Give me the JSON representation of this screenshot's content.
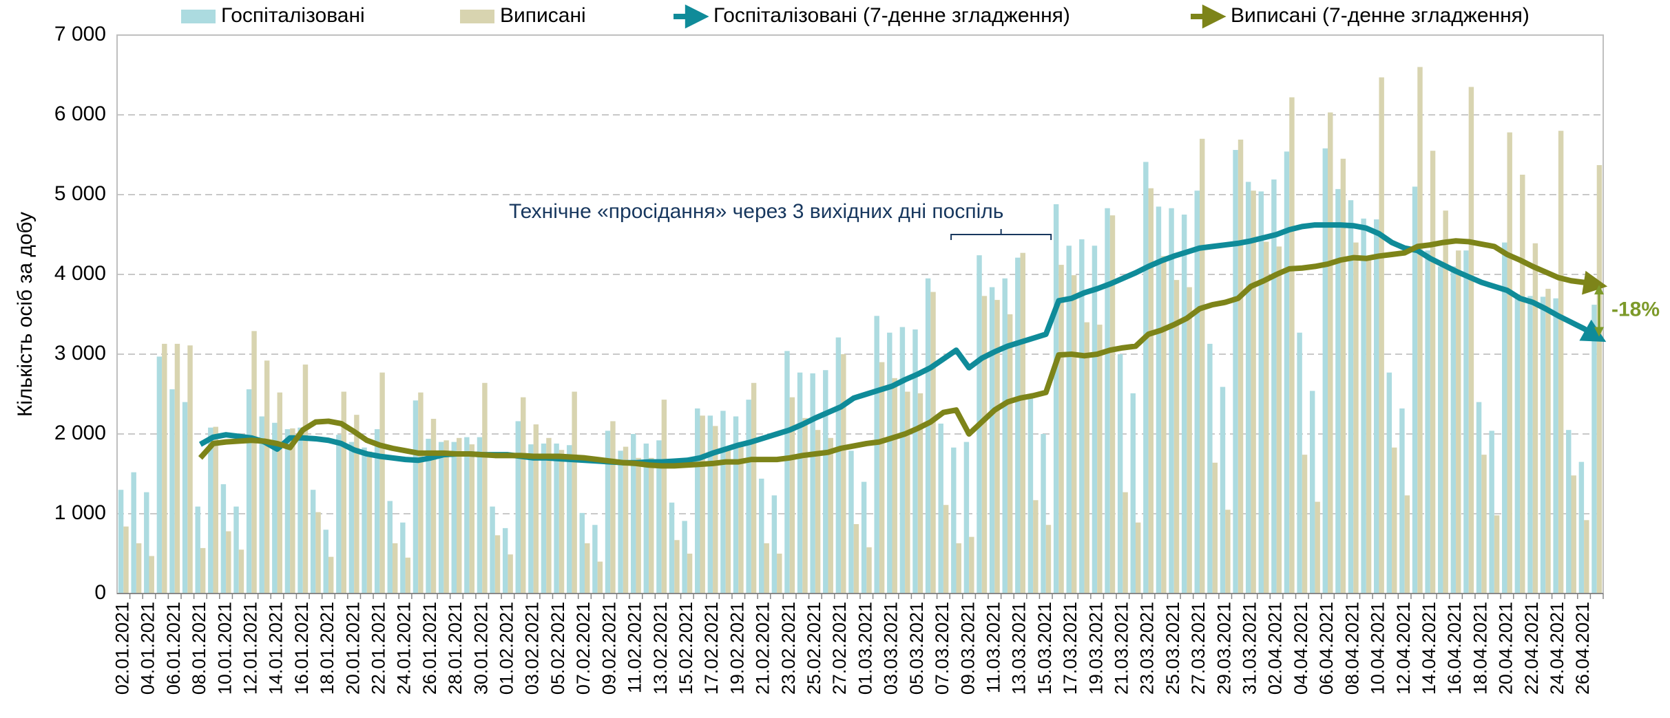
{
  "chart_data": {
    "type": "bar-line",
    "y_label": "Кількість осіб за добу",
    "annotations": [
      "Технічне «просідання» через 3 вихідних дні поспіль",
      "-18%"
    ],
    "ylim": [
      0,
      7000
    ],
    "yticks": [
      0,
      {
        "value": 1000,
        "label": "1 000"
      },
      {
        "value": 2000,
        "label": "2 000"
      },
      {
        "value": 3000,
        "label": "3 000"
      },
      {
        "value": 4000,
        "label": "4 000"
      },
      {
        "value": 5000,
        "label": "5 000"
      },
      {
        "value": 6000,
        "label": "6 000"
      },
      {
        "value": 7000,
        "label": "7 000"
      }
    ],
    "grid": true,
    "categories": [
      "02.01.2021",
      null,
      "04.01.2021",
      null,
      "06.01.2021",
      null,
      "08.01.2021",
      null,
      "10.01.2021",
      null,
      "12.01.2021",
      null,
      "14.01.2021",
      null,
      "16.01.2021",
      null,
      "18.01.2021",
      null,
      "20.01.2021",
      null,
      "22.01.2021",
      null,
      "24.01.2021",
      null,
      "26.01.2021",
      null,
      "28.01.2021",
      null,
      "30.01.2021",
      null,
      "01.02.2021",
      null,
      "03.02.2021",
      null,
      "05.02.2021",
      null,
      "07.02.2021",
      null,
      "09.02.2021",
      null,
      "11.02.2021",
      null,
      "13.02.2021",
      null,
      "15.02.2021",
      null,
      "17.02.2021",
      null,
      "19.02.2021",
      null,
      "21.02.2021",
      null,
      "23.02.2021",
      null,
      "25.02.2021",
      null,
      "27.02.2021",
      null,
      "01.03.2021",
      null,
      "03.03.2021",
      null,
      "05.03.2021",
      null,
      "07.03.2021",
      null,
      "09.03.2021",
      null,
      "11.03.2021",
      null,
      "13.03.2021",
      null,
      "15.03.2021",
      null,
      "17.03.2021",
      null,
      "19.03.2021",
      null,
      "21.03.2021",
      null,
      "23.03.2021",
      null,
      "25.03.2021",
      null,
      "27.03.2021",
      null,
      "29.03.2021",
      null,
      "31.03.2021",
      null,
      "02.04.2021",
      null,
      "04.04.2021",
      null,
      "06.04.2021",
      null,
      "08.04.2021",
      null,
      "10.04.2021",
      null,
      "12.04.2021",
      null,
      "14.04.2021",
      null,
      "16.04.2021",
      null,
      "18.04.2021",
      null,
      "20.04.2021",
      null,
      "22.04.2021",
      null,
      "24.04.2021",
      null,
      "26.04.2021",
      null
    ],
    "series": [
      {
        "name": "Госпіталізовані",
        "kind": "bar",
        "color": "#acdbe0",
        "values": [
          1300,
          1520,
          1270,
          2970,
          2560,
          2400,
          1090,
          2080,
          1370,
          1090,
          2560,
          2220,
          2140,
          2060,
          2080,
          1300,
          800,
          1990,
          1900,
          1830,
          2060,
          1160,
          890,
          2420,
          1940,
          1900,
          1900,
          1960,
          1960,
          1090,
          820,
          2160,
          1870,
          1880,
          1880,
          1860,
          1010,
          860,
          2040,
          1790,
          2000,
          1880,
          1920,
          1140,
          910,
          2320,
          2230,
          2290,
          2220,
          2430,
          1440,
          1230,
          3040,
          2770,
          2760,
          2800,
          3210,
          1790,
          1400,
          3480,
          3270,
          3340,
          3310,
          3950,
          2130,
          1830,
          1900,
          4240,
          3840,
          3950,
          4210,
          2450,
          2000,
          4880,
          4360,
          4440,
          4360,
          4830,
          3000,
          2510,
          5410,
          4850,
          4830,
          4750,
          5050,
          3130,
          2590,
          5560,
          5160,
          5040,
          5190,
          5540,
          3270,
          2540,
          5580,
          5070,
          4930,
          4700,
          4690,
          2770,
          2320,
          5100,
          4300,
          4100,
          4100,
          4300,
          2400,
          2040,
          4400,
          3750,
          3730,
          3720,
          3700,
          2050,
          1650,
          3620
        ]
      },
      {
        "name": "Виписані",
        "kind": "bar",
        "color": "#d8d4b0",
        "values": [
          840,
          630,
          470,
          3130,
          3130,
          3110,
          570,
          2090,
          780,
          550,
          3290,
          2920,
          2520,
          2070,
          2870,
          1020,
          460,
          2530,
          2240,
          1780,
          2770,
          630,
          450,
          2520,
          2190,
          1920,
          1950,
          1870,
          2640,
          730,
          490,
          2460,
          2120,
          1950,
          1800,
          2530,
          630,
          400,
          2160,
          1840,
          1700,
          1700,
          2430,
          670,
          500,
          2230,
          2100,
          1800,
          1900,
          2640,
          630,
          500,
          2460,
          2200,
          2050,
          1950,
          3000,
          870,
          580,
          2900,
          2700,
          2530,
          2510,
          3780,
          1110,
          630,
          710,
          3730,
          3680,
          3500,
          4270,
          1170,
          860,
          4120,
          3990,
          3400,
          3370,
          4740,
          1270,
          890,
          5080,
          4230,
          3930,
          3840,
          5700,
          1640,
          1050,
          5690,
          5050,
          4410,
          4350,
          6220,
          1740,
          1150,
          6030,
          5450,
          4400,
          4200,
          6470,
          1830,
          1230,
          6600,
          5550,
          4800,
          4300,
          6350,
          1740,
          980,
          5780,
          5250,
          4390,
          3820,
          5800,
          1480,
          920,
          5370
        ]
      },
      {
        "name": "Госпіталізовані (7-денне згладження)",
        "kind": "line",
        "color": "#0f8b99",
        "values": [
          null,
          null,
          null,
          null,
          null,
          null,
          1870,
          1960,
          1990,
          1970,
          1950,
          1900,
          1810,
          1950,
          1950,
          1940,
          1920,
          1880,
          1800,
          1750,
          1720,
          1700,
          1680,
          1670,
          1700,
          1740,
          1750,
          1750,
          1740,
          1740,
          1740,
          1720,
          1700,
          1700,
          1690,
          1680,
          1670,
          1660,
          1650,
          1640,
          1640,
          1650,
          1650,
          1660,
          1670,
          1700,
          1760,
          1810,
          1860,
          1900,
          1950,
          2000,
          2050,
          2120,
          2200,
          2270,
          2340,
          2450,
          2500,
          2550,
          2600,
          2680,
          2750,
          2830,
          2940,
          3050,
          2830,
          2950,
          3030,
          3100,
          3150,
          3200,
          3250,
          3670,
          3700,
          3770,
          3820,
          3880,
          3950,
          4020,
          4100,
          4170,
          4230,
          4280,
          4330,
          4350,
          4370,
          4390,
          4420,
          4460,
          4500,
          4560,
          4600,
          4620,
          4620,
          4620,
          4610,
          4580,
          4510,
          4400,
          4330,
          4300,
          4200,
          4120,
          4040,
          3970,
          3900,
          3850,
          3800,
          3700,
          3650,
          3570,
          3480,
          3400,
          3320,
          3220
        ]
      },
      {
        "name": "Виписані (7-денне згладження)",
        "kind": "line",
        "color": "#7d8419",
        "values": [
          null,
          null,
          null,
          null,
          null,
          null,
          1700,
          1880,
          1900,
          1910,
          1920,
          1910,
          1880,
          1830,
          2050,
          2150,
          2160,
          2130,
          2030,
          1920,
          1860,
          1820,
          1790,
          1760,
          1760,
          1760,
          1750,
          1750,
          1740,
          1730,
          1730,
          1730,
          1720,
          1720,
          1720,
          1710,
          1700,
          1680,
          1660,
          1640,
          1630,
          1610,
          1600,
          1600,
          1610,
          1620,
          1630,
          1650,
          1650,
          1680,
          1680,
          1680,
          1700,
          1730,
          1750,
          1770,
          1820,
          1850,
          1880,
          1900,
          1950,
          2000,
          2070,
          2150,
          2270,
          2300,
          2000,
          2150,
          2300,
          2400,
          2450,
          2480,
          2520,
          2990,
          3000,
          2980,
          3000,
          3050,
          3080,
          3100,
          3250,
          3300,
          3370,
          3450,
          3570,
          3620,
          3650,
          3700,
          3850,
          3920,
          4000,
          4070,
          4080,
          4100,
          4130,
          4180,
          4210,
          4200,
          4230,
          4250,
          4270,
          4350,
          4370,
          4400,
          4420,
          4410,
          4380,
          4350,
          4250,
          4180,
          4100,
          4030,
          3960,
          3920,
          3900,
          3870
        ]
      }
    ]
  }
}
